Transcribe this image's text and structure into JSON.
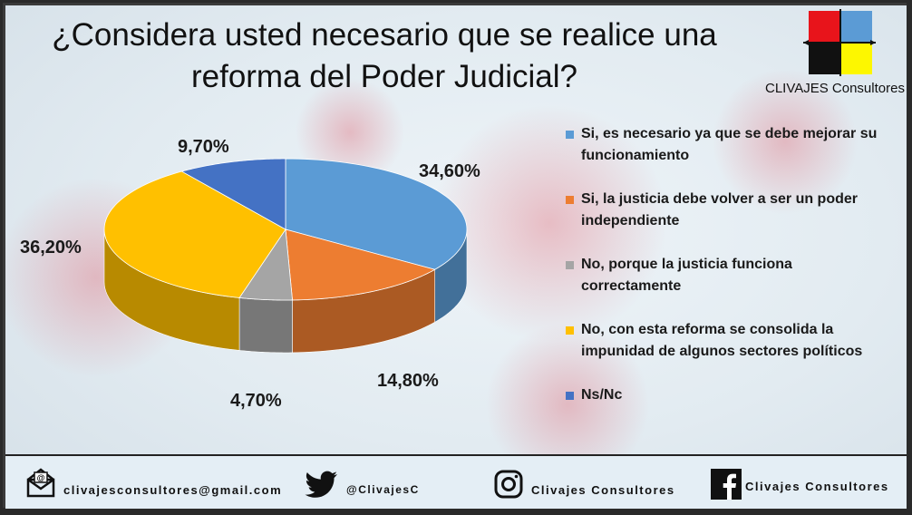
{
  "title": "¿Considera usted necesario que se realice una reforma del Poder Judicial?",
  "brand": {
    "name": "CLIVAJES Consultores",
    "logo_colors": [
      "#e8141b",
      "#5b9bd5",
      "#111111",
      "#fdf700"
    ]
  },
  "chart_data": {
    "type": "pie",
    "title": "¿Considera usted necesario que se realice una reforma del Poder Judicial?",
    "legend_position": "right",
    "style": "3d",
    "categories": [
      "Si, es necesario ya que se debe mejorar su funcionamiento",
      "Si, la justicia debe volver a ser un poder independiente",
      "No, porque la justicia funciona correctamente",
      "No, con esta reforma se consolida la impunidad de algunos sectores políticos",
      "Ns/Nc"
    ],
    "values": [
      34.6,
      14.8,
      4.7,
      36.2,
      9.7
    ],
    "labels": [
      "34,60%",
      "14,80%",
      "4,70%",
      "36,20%",
      "9,70%"
    ],
    "colors": [
      "#5b9bd5",
      "#ed7d31",
      "#a5a5a5",
      "#ffc000",
      "#4472c4"
    ]
  },
  "legend": {
    "items": [
      {
        "line1": "Si, es necesario ya que se debe mejorar su",
        "line2": "funcionamiento"
      },
      {
        "line1": "Si, la justicia debe volver a ser un poder",
        "line2": "independiente"
      },
      {
        "line1": "No, porque la justicia funciona",
        "line2": "correctamente"
      },
      {
        "line1": "No, con esta reforma se consolida la",
        "line2": "impunidad de algunos sectores políticos"
      },
      {
        "line1": "Ns/Nc",
        "line2": ""
      }
    ]
  },
  "footer": {
    "email": "clivajesconsultores@gmail.com",
    "twitter": "@ClivajesC",
    "instagram": "Clivajes Consultores",
    "facebook": "Clivajes Consultores",
    "icons": [
      "email-icon",
      "twitter-icon",
      "instagram-icon",
      "facebook-icon"
    ]
  }
}
